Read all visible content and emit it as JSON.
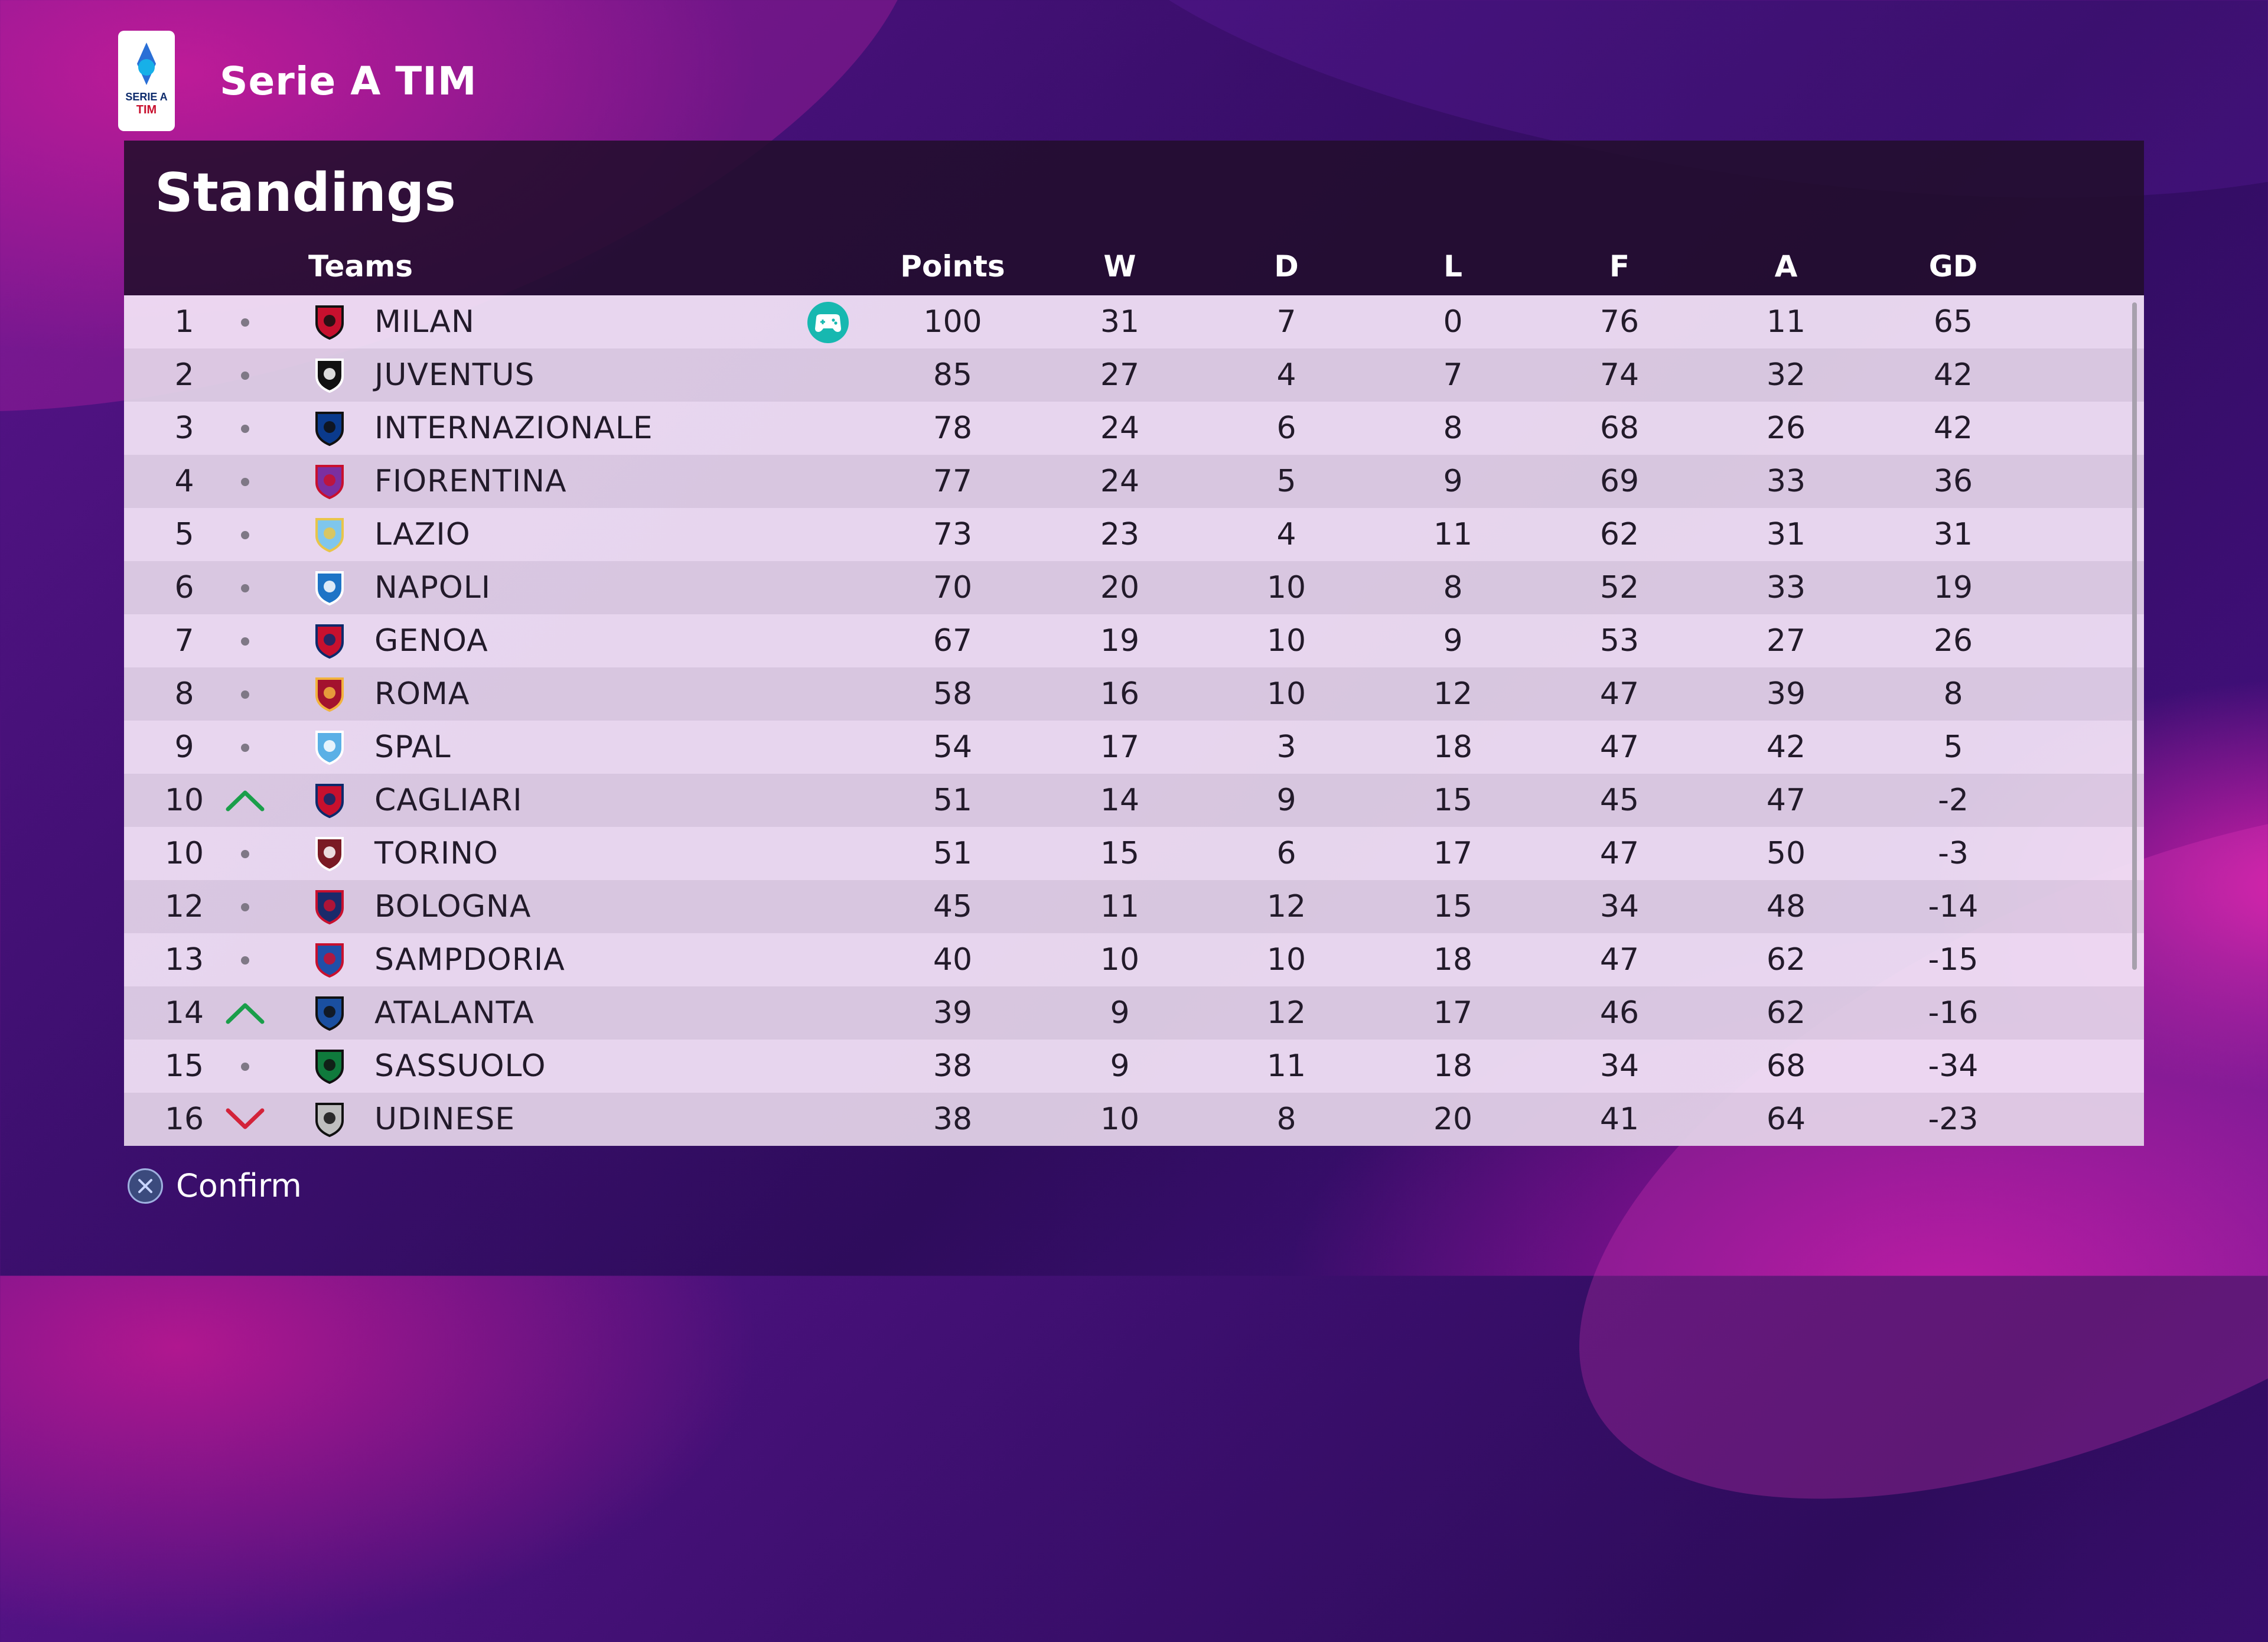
{
  "header": {
    "league_name": "Serie A TIM",
    "logo_text_top": "SERIE A",
    "logo_text_bottom": "TIM"
  },
  "panel": {
    "title": "Standings",
    "columns": {
      "teams": "Teams",
      "points": "Points",
      "w": "W",
      "d": "D",
      "l": "L",
      "f": "F",
      "a": "A",
      "gd": "GD"
    }
  },
  "standings": [
    {
      "pos": "1",
      "trend": "same",
      "team": "MILAN",
      "crest": "milan-crest",
      "user": true,
      "points": "100",
      "w": "31",
      "d": "7",
      "l": "0",
      "f": "76",
      "a": "11",
      "gd": "65"
    },
    {
      "pos": "2",
      "trend": "same",
      "team": "JUVENTUS",
      "crest": "juventus-crest",
      "user": false,
      "points": "85",
      "w": "27",
      "d": "4",
      "l": "7",
      "f": "74",
      "a": "32",
      "gd": "42"
    },
    {
      "pos": "3",
      "trend": "same",
      "team": "INTERNAZIONALE",
      "crest": "inter-crest",
      "user": false,
      "points": "78",
      "w": "24",
      "d": "6",
      "l": "8",
      "f": "68",
      "a": "26",
      "gd": "42"
    },
    {
      "pos": "4",
      "trend": "same",
      "team": "FIORENTINA",
      "crest": "fiorentina-crest",
      "user": false,
      "points": "77",
      "w": "24",
      "d": "5",
      "l": "9",
      "f": "69",
      "a": "33",
      "gd": "36"
    },
    {
      "pos": "5",
      "trend": "same",
      "team": "LAZIO",
      "crest": "lazio-crest",
      "user": false,
      "points": "73",
      "w": "23",
      "d": "4",
      "l": "11",
      "f": "62",
      "a": "31",
      "gd": "31"
    },
    {
      "pos": "6",
      "trend": "same",
      "team": "NAPOLI",
      "crest": "napoli-crest",
      "user": false,
      "points": "70",
      "w": "20",
      "d": "10",
      "l": "8",
      "f": "52",
      "a": "33",
      "gd": "19"
    },
    {
      "pos": "7",
      "trend": "same",
      "team": "GENOA",
      "crest": "genoa-crest",
      "user": false,
      "points": "67",
      "w": "19",
      "d": "10",
      "l": "9",
      "f": "53",
      "a": "27",
      "gd": "26"
    },
    {
      "pos": "8",
      "trend": "same",
      "team": "ROMA",
      "crest": "roma-crest",
      "user": false,
      "points": "58",
      "w": "16",
      "d": "10",
      "l": "12",
      "f": "47",
      "a": "39",
      "gd": "8"
    },
    {
      "pos": "9",
      "trend": "same",
      "team": "SPAL",
      "crest": "spal-crest",
      "user": false,
      "points": "54",
      "w": "17",
      "d": "3",
      "l": "18",
      "f": "47",
      "a": "42",
      "gd": "5"
    },
    {
      "pos": "10",
      "trend": "up",
      "team": "CAGLIARI",
      "crest": "cagliari-crest",
      "user": false,
      "points": "51",
      "w": "14",
      "d": "9",
      "l": "15",
      "f": "45",
      "a": "47",
      "gd": "-2"
    },
    {
      "pos": "10",
      "trend": "same",
      "team": "TORINO",
      "crest": "torino-crest",
      "user": false,
      "points": "51",
      "w": "15",
      "d": "6",
      "l": "17",
      "f": "47",
      "a": "50",
      "gd": "-3"
    },
    {
      "pos": "12",
      "trend": "same",
      "team": "BOLOGNA",
      "crest": "bologna-crest",
      "user": false,
      "points": "45",
      "w": "11",
      "d": "12",
      "l": "15",
      "f": "34",
      "a": "48",
      "gd": "-14"
    },
    {
      "pos": "13",
      "trend": "same",
      "team": "SAMPDORIA",
      "crest": "sampdoria-crest",
      "user": false,
      "points": "40",
      "w": "10",
      "d": "10",
      "l": "18",
      "f": "47",
      "a": "62",
      "gd": "-15"
    },
    {
      "pos": "14",
      "trend": "up",
      "team": "ATALANTA",
      "crest": "atalanta-crest",
      "user": false,
      "points": "39",
      "w": "9",
      "d": "12",
      "l": "17",
      "f": "46",
      "a": "62",
      "gd": "-16"
    },
    {
      "pos": "15",
      "trend": "same",
      "team": "SASSUOLO",
      "crest": "sassuolo-crest",
      "user": false,
      "points": "38",
      "w": "9",
      "d": "11",
      "l": "18",
      "f": "34",
      "a": "68",
      "gd": "-34"
    },
    {
      "pos": "16",
      "trend": "down",
      "team": "UDINESE",
      "crest": "udinese-crest",
      "user": false,
      "points": "38",
      "w": "10",
      "d": "8",
      "l": "20",
      "f": "41",
      "a": "64",
      "gd": "-23"
    }
  ],
  "crest_colors": {
    "milan-crest": [
      "#c8102e",
      "#111111"
    ],
    "juventus-crest": [
      "#111111",
      "#ffffff"
    ],
    "inter-crest": [
      "#0a3a8c",
      "#111111"
    ],
    "fiorentina-crest": [
      "#7b2fa0",
      "#c8102e"
    ],
    "lazio-crest": [
      "#7fc6ec",
      "#e8c54a"
    ],
    "napoli-crest": [
      "#1e74c6",
      "#ffffff"
    ],
    "genoa-crest": [
      "#c8102e",
      "#0c2a6b"
    ],
    "roma-crest": [
      "#a3122e",
      "#f2b33d"
    ],
    "spal-crest": [
      "#5ab0e6",
      "#ffffff"
    ],
    "cagliari-crest": [
      "#c8102e",
      "#0c2a6b"
    ],
    "torino-crest": [
      "#7a1a24",
      "#ffffff"
    ],
    "bologna-crest": [
      "#1a2a6b",
      "#c8102e"
    ],
    "sampdoria-crest": [
      "#1f4fa8",
      "#c8102e"
    ],
    "atalanta-crest": [
      "#1a4fa0",
      "#111111"
    ],
    "sassuolo-crest": [
      "#0f7a3c",
      "#111111"
    ],
    "udinese-crest": [
      "#bfbfbf",
      "#111111"
    ]
  },
  "colors": {
    "trend_up": "#1a9e4a",
    "trend_down": "#d3233a",
    "trend_same": "#7f7886",
    "controller_icon": "#17b8b0"
  },
  "footer": {
    "confirm_label": "Confirm",
    "button_icon": "cross-button-icon"
  }
}
